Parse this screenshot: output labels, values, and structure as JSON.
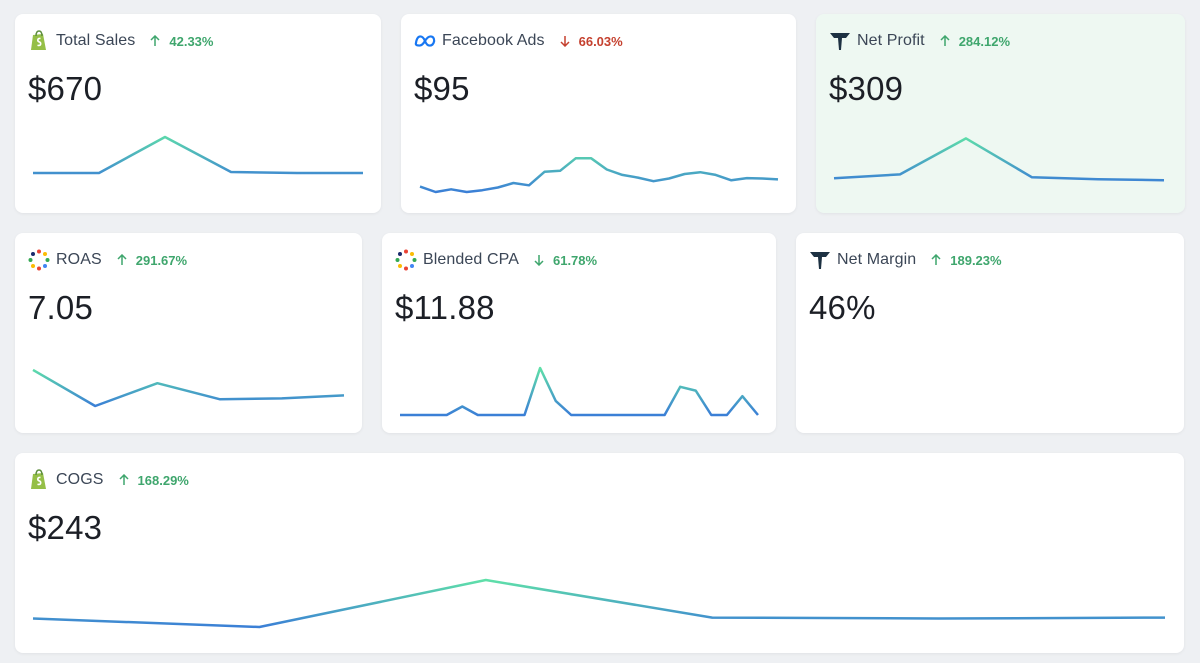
{
  "colors": {
    "up": "#3fa66d",
    "down": "#c5412f",
    "line_low": "#3b7fd6",
    "line_high": "#5fe0a8",
    "card_highlight": "#eef8f2"
  },
  "cards": [
    {
      "id": "total-sales",
      "icon": "shopify-icon",
      "title": "Total Sales",
      "direction": "up",
      "change": "42.33%",
      "value": "$670",
      "spark": [
        0.18,
        0.18,
        0.9,
        0.2,
        0.18,
        0.18
      ]
    },
    {
      "id": "facebook-ads",
      "icon": "meta-icon",
      "title": "Facebook Ads",
      "direction": "down",
      "change": "66.03%",
      "value": "$95",
      "spark": [
        0.12,
        0.0,
        0.06,
        0.0,
        0.04,
        0.1,
        0.2,
        0.15,
        0.45,
        0.47,
        0.75,
        0.75,
        0.5,
        0.38,
        0.32,
        0.24,
        0.3,
        0.4,
        0.44,
        0.38,
        0.26,
        0.31,
        0.3,
        0.28
      ]
    },
    {
      "id": "net-profit",
      "icon": "triple-whale-icon",
      "title": "Net Profit",
      "direction": "up",
      "change": "284.12%",
      "value": "$309",
      "spark": [
        0.12,
        0.2,
        0.95,
        0.14,
        0.1,
        0.08
      ]
    },
    {
      "id": "roas",
      "icon": "dots-ring-icon",
      "title": "ROAS",
      "direction": "up",
      "change": "291.67%",
      "value": "7.05",
      "spark": [
        0.95,
        0.0,
        0.6,
        0.18,
        0.2,
        0.28
      ]
    },
    {
      "id": "blended-cpa",
      "icon": "dots-ring-icon",
      "title": "Blended CPA",
      "direction": "down",
      "change": "61.78%",
      "value": "$11.88",
      "spark": [
        0.0,
        0.0,
        0.0,
        0.0,
        0.18,
        0.0,
        0.0,
        0.0,
        0.0,
        1.0,
        0.3,
        0.0,
        0.0,
        0.0,
        0.0,
        0.0,
        0.0,
        0.0,
        0.6,
        0.52,
        0.0,
        0.0,
        0.4,
        0.0
      ]
    },
    {
      "id": "net-margin",
      "icon": "triple-whale-icon",
      "title": "Net Margin",
      "direction": "up",
      "change": "189.23%",
      "value": "46%",
      "spark": []
    },
    {
      "id": "cogs",
      "icon": "shopify-icon",
      "title": "COGS",
      "direction": "up",
      "change": "168.29%",
      "value": "$243",
      "spark": [
        0.18,
        0.0,
        1.0,
        0.2,
        0.18,
        0.2
      ]
    }
  ]
}
